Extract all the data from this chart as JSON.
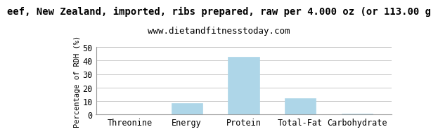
{
  "title_line1": "eef, New Zealand, imported, ribs prepared, raw per 4.000 oz (or 113.00 g",
  "title_line2": "www.dietandfitnesstoday.com",
  "categories": [
    "Threonine",
    "Energy",
    "Protein",
    "Total-Fat",
    "Carbohydrate"
  ],
  "values": [
    0,
    8.5,
    43.0,
    12.0,
    0.5
  ],
  "bar_color": "#aed6e8",
  "bar_edge_color": "#aed6e8",
  "ylabel": "Percentage of RDH (%)",
  "ylim": [
    0,
    50
  ],
  "yticks": [
    0,
    10,
    20,
    30,
    40,
    50
  ],
  "background_color": "#ffffff",
  "grid_color": "#c8c8c8",
  "title_fontsize": 10,
  "subtitle_fontsize": 9,
  "axis_label_fontsize": 7.5,
  "tick_fontsize": 8.5
}
